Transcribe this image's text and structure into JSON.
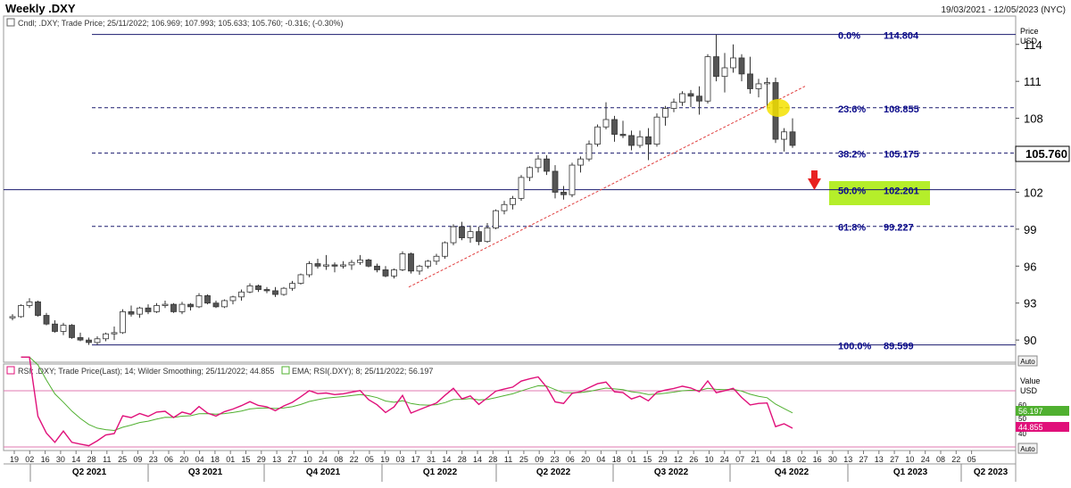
{
  "header": {
    "title": "Weekly .DXY",
    "date_range": "19/03/2021 - 12/05/2023 (NYC)"
  },
  "price_panel": {
    "info": "Cndl; .DXY; Trade Price; 25/11/2022; 106.969; 107.993; 105.633; 105.760; -0.316; (-0.30%)",
    "axis_unit_top": "Price",
    "axis_unit_bottom": "USD",
    "last_price_label": "105.760",
    "auto_label": "Auto",
    "y_ticks": [
      "114",
      "111",
      "108",
      "105",
      "102",
      "99",
      "96",
      "93",
      "90"
    ]
  },
  "rsi_panel": {
    "info_rsi": "RSI; .DXY; Trade Price(Last); 14; Wilder Smoothing; 25/11/2022; 44.855",
    "info_ema": "EMA; RSI(.DXY); 8; 25/11/2022; 56.197",
    "axis_unit_top": "Value",
    "axis_unit_bottom": "USD",
    "y_ticks": [
      "60",
      "50",
      "40"
    ],
    "ema_value_label": "56.197",
    "rsi_value_label": "44.855",
    "auto_label": "Auto"
  },
  "x_axis": {
    "week_labels": [
      "19",
      "02",
      "16",
      "30",
      "14",
      "28",
      "11",
      "25",
      "09",
      "23",
      "06",
      "20",
      "04",
      "18",
      "01",
      "15",
      "29",
      "13",
      "27",
      "10",
      "24",
      "08",
      "22",
      "05",
      "19",
      "03",
      "17",
      "31",
      "14",
      "28",
      "14",
      "28",
      "11",
      "25",
      "09",
      "23",
      "06",
      "20",
      "04",
      "18",
      "01",
      "15",
      "29",
      "12",
      "26",
      "10",
      "24",
      "07",
      "21",
      "04",
      "18",
      "02",
      "16",
      "30",
      "13",
      "27",
      "13",
      "27",
      "10",
      "24",
      "08",
      "22",
      "05"
    ],
    "quarter_labels": [
      "Q2 2021",
      "Q3 2021",
      "Q4 2021",
      "Q1 2022",
      "Q2 2022",
      "Q3 2022",
      "Q4 2022",
      "Q1 2023",
      "Q2 2023"
    ]
  },
  "colors": {
    "fib_line": "#1a1a6e",
    "fib_text": "#0a0a8a",
    "trendline": "#e04040",
    "rsi_line": "#e0107a",
    "ema_line": "#50b030",
    "highlight_circle": "#f5e200",
    "highlight_box": "#b5ee2a",
    "down_arrow": "#e82020",
    "bear_candle": "#555555"
  },
  "chart_data": {
    "type": "candlestick",
    "title": "Weekly .DXY",
    "ylabel": "Price USD",
    "ylim": [
      88.2,
      116.3
    ],
    "fibonacci": [
      {
        "level": "0.0%",
        "value": 114.804
      },
      {
        "level": "23.6%",
        "value": 108.855
      },
      {
        "level": "38.2%",
        "value": 105.175
      },
      {
        "level": "50.0%",
        "value": 102.201
      },
      {
        "level": "61.8%",
        "value": 99.227
      },
      {
        "level": "100.0%",
        "value": 89.599
      }
    ],
    "trendline": {
      "from": 94.3,
      "to": 110.6
    },
    "candles": [
      [
        91.8,
        92.1,
        91.6,
        91.9
      ],
      [
        91.9,
        92.9,
        91.8,
        92.8
      ],
      [
        92.8,
        93.4,
        92.6,
        93.1
      ],
      [
        93.1,
        93.2,
        91.9,
        92.0
      ],
      [
        92.0,
        92.2,
        91.2,
        91.3
      ],
      [
        91.3,
        91.6,
        90.6,
        90.7
      ],
      [
        90.7,
        91.4,
        90.4,
        91.2
      ],
      [
        91.2,
        91.3,
        90.1,
        90.2
      ],
      [
        90.2,
        90.6,
        89.9,
        90.0
      ],
      [
        90.0,
        90.2,
        89.6,
        89.8
      ],
      [
        89.8,
        90.3,
        89.6,
        90.1
      ],
      [
        90.1,
        90.6,
        89.9,
        90.5
      ],
      [
        90.5,
        91.1,
        90.0,
        90.6
      ],
      [
        90.6,
        92.5,
        90.5,
        92.3
      ],
      [
        92.3,
        92.8,
        91.9,
        92.1
      ],
      [
        92.1,
        92.7,
        91.8,
        92.6
      ],
      [
        92.6,
        92.9,
        92.1,
        92.3
      ],
      [
        92.3,
        93.0,
        92.2,
        92.8
      ],
      [
        92.8,
        93.2,
        92.6,
        92.9
      ],
      [
        92.9,
        93.0,
        92.2,
        92.3
      ],
      [
        92.3,
        93.1,
        92.1,
        92.9
      ],
      [
        92.9,
        93.0,
        92.4,
        92.7
      ],
      [
        92.7,
        93.8,
        92.6,
        93.6
      ],
      [
        93.6,
        93.7,
        92.9,
        93.0
      ],
      [
        93.0,
        93.2,
        92.6,
        92.7
      ],
      [
        92.7,
        93.3,
        92.6,
        93.2
      ],
      [
        93.2,
        93.6,
        92.9,
        93.5
      ],
      [
        93.5,
        94.1,
        93.2,
        93.9
      ],
      [
        93.9,
        94.6,
        93.8,
        94.4
      ],
      [
        94.4,
        94.5,
        93.9,
        94.1
      ],
      [
        94.1,
        94.3,
        93.8,
        94.0
      ],
      [
        94.0,
        94.3,
        93.5,
        93.7
      ],
      [
        93.7,
        94.3,
        93.6,
        94.2
      ],
      [
        94.2,
        94.8,
        94.0,
        94.6
      ],
      [
        94.6,
        95.4,
        94.5,
        95.3
      ],
      [
        95.3,
        96.4,
        95.1,
        96.2
      ],
      [
        96.2,
        96.6,
        95.8,
        96.0
      ],
      [
        96.0,
        96.9,
        95.7,
        96.1
      ],
      [
        96.1,
        96.3,
        95.5,
        96.0
      ],
      [
        96.0,
        96.4,
        95.8,
        96.1
      ],
      [
        96.1,
        96.5,
        95.7,
        96.3
      ],
      [
        96.3,
        96.9,
        96.1,
        96.5
      ],
      [
        96.5,
        96.6,
        95.9,
        96.0
      ],
      [
        96.0,
        96.2,
        95.5,
        95.7
      ],
      [
        95.7,
        96.0,
        95.1,
        95.2
      ],
      [
        95.2,
        95.8,
        95.0,
        95.7
      ],
      [
        95.7,
        97.2,
        95.6,
        97.0
      ],
      [
        97.0,
        97.1,
        95.4,
        95.6
      ],
      [
        95.6,
        96.1,
        95.3,
        96.0
      ],
      [
        96.0,
        96.5,
        95.8,
        96.4
      ],
      [
        96.4,
        97.0,
        96.1,
        96.8
      ],
      [
        96.8,
        98.0,
        96.6,
        97.9
      ],
      [
        97.9,
        99.4,
        97.7,
        99.2
      ],
      [
        99.2,
        99.6,
        98.1,
        98.3
      ],
      [
        98.3,
        99.3,
        97.9,
        98.8
      ],
      [
        98.8,
        99.2,
        97.7,
        98.0
      ],
      [
        98.0,
        99.5,
        97.9,
        99.1
      ],
      [
        99.1,
        100.6,
        99.0,
        100.5
      ],
      [
        100.5,
        101.3,
        100.2,
        101.0
      ],
      [
        101.0,
        101.7,
        100.6,
        101.5
      ],
      [
        101.5,
        103.4,
        101.3,
        103.2
      ],
      [
        103.2,
        104.1,
        102.9,
        104.0
      ],
      [
        104.0,
        105.0,
        103.6,
        104.7
      ],
      [
        104.7,
        105.0,
        103.4,
        103.7
      ],
      [
        103.7,
        104.2,
        101.5,
        102.0
      ],
      [
        102.0,
        102.5,
        101.4,
        101.8
      ],
      [
        101.8,
        104.4,
        101.6,
        104.2
      ],
      [
        104.2,
        104.9,
        103.6,
        104.7
      ],
      [
        104.7,
        106.2,
        104.5,
        105.9
      ],
      [
        105.9,
        107.5,
        105.7,
        107.3
      ],
      [
        107.3,
        109.3,
        107.1,
        107.9
      ],
      [
        107.9,
        108.2,
        106.1,
        106.7
      ],
      [
        106.7,
        107.8,
        106.4,
        106.6
      ],
      [
        106.6,
        107.0,
        105.4,
        105.8
      ],
      [
        105.8,
        107.0,
        105.6,
        106.5
      ],
      [
        106.5,
        107.2,
        104.6,
        105.9
      ],
      [
        105.9,
        108.4,
        105.7,
        108.1
      ],
      [
        108.1,
        109.0,
        107.4,
        108.8
      ],
      [
        108.8,
        109.6,
        108.5,
        109.3
      ],
      [
        109.3,
        110.2,
        109.0,
        110.0
      ],
      [
        110.0,
        110.3,
        108.9,
        109.8
      ],
      [
        109.8,
        110.6,
        108.3,
        109.4
      ],
      [
        109.4,
        113.2,
        109.2,
        113.0
      ],
      [
        113.0,
        114.8,
        111.0,
        111.4
      ],
      [
        111.4,
        113.3,
        110.1,
        112.1
      ],
      [
        112.1,
        114.0,
        111.7,
        112.9
      ],
      [
        112.9,
        113.2,
        111.0,
        111.6
      ],
      [
        111.6,
        113.0,
        110.0,
        110.4
      ],
      [
        110.4,
        111.2,
        109.7,
        110.8
      ],
      [
        110.8,
        111.3,
        108.8,
        110.9
      ],
      [
        110.9,
        111.3,
        106.0,
        106.3
      ],
      [
        106.3,
        107.2,
        105.3,
        106.9
      ],
      [
        106.9,
        108.0,
        105.6,
        105.8
      ]
    ]
  }
}
